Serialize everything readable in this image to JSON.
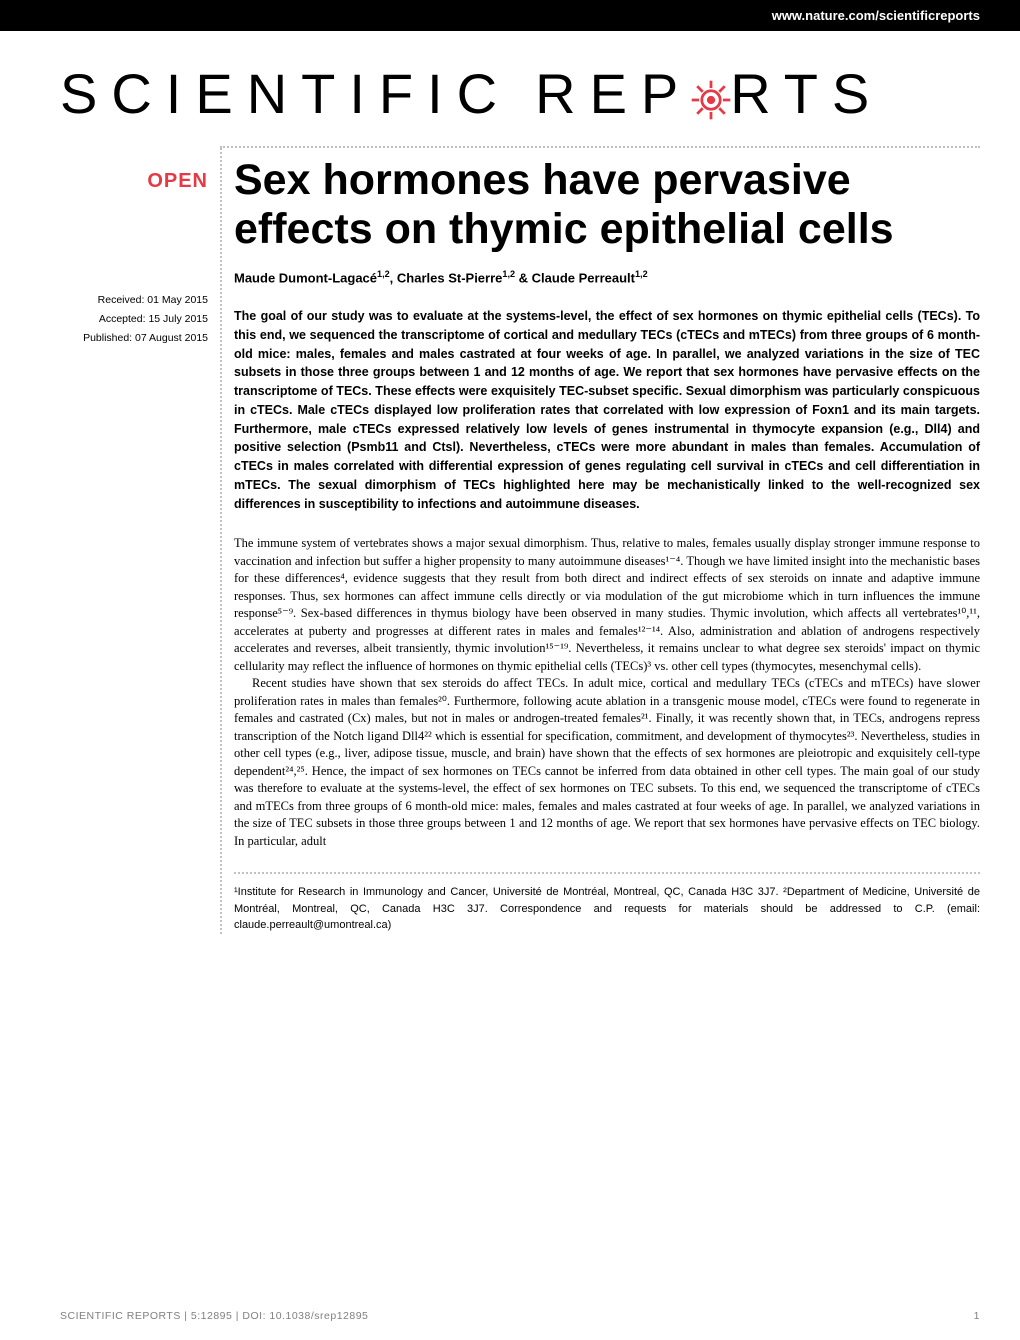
{
  "header": {
    "url": "www.nature.com/scientificreports"
  },
  "logo": {
    "left": "SCIENTIFIC",
    "right": "REP",
    "right2": "RTS",
    "gear_color": "#e63946"
  },
  "badge": {
    "open": "OPEN"
  },
  "dates": {
    "received": "Received: 01 May 2015",
    "accepted": "Accepted: 15 July 2015",
    "published": "Published: 07 August 2015"
  },
  "title": "Sex hormones have pervasive effects on thymic epithelial cells",
  "authors_html": "Maude Dumont-Lagacé<sup>1,2</sup>, Charles St-Pierre<sup>1,2</sup> & Claude Perreault<sup>1,2</sup>",
  "abstract": "The goal of our study was to evaluate at the systems-level, the effect of sex hormones on thymic epithelial cells (TECs). To this end, we sequenced the transcriptome of cortical and medullary TECs (cTECs and mTECs) from three groups of 6 month-old mice: males, females and males castrated at four weeks of age. In parallel, we analyzed variations in the size of TEC subsets in those three groups between 1 and 12 months of age. We report that sex hormones have pervasive effects on the transcriptome of TECs. These effects were exquisitely TEC-subset specific. Sexual dimorphism was particularly conspicuous in cTECs. Male cTECs displayed low proliferation rates that correlated with low expression of Foxn1 and its main targets. Furthermore, male cTECs expressed relatively low levels of genes instrumental in thymocyte expansion (e.g., Dll4) and positive selection (Psmb11 and Ctsl). Nevertheless, cTECs were more abundant in males than females. Accumulation of cTECs in males correlated with differential expression of genes regulating cell survival in cTECs and cell differentiation in mTECs. The sexual dimorphism of TECs highlighted here may be mechanistically linked to the well-recognized sex differences in susceptibility to infections and autoimmune diseases.",
  "body": {
    "p1": "The immune system of vertebrates shows a major sexual dimorphism. Thus, relative to males, females usually display stronger immune response to vaccination and infection but suffer a higher propensity to many autoimmune diseases¹⁻⁴. Though we have limited insight into the mechanistic bases for these differences⁴, evidence suggests that they result from both direct and indirect effects of sex steroids on innate and adaptive immune responses. Thus, sex hormones can affect immune cells directly or via modulation of the gut microbiome which in turn influences the immune response⁵⁻⁹. Sex-based differences in thymus biology have been observed in many studies. Thymic involution, which affects all vertebrates¹⁰,¹¹, accelerates at puberty and progresses at different rates in males and females¹²⁻¹⁴. Also, administration and ablation of androgens respectively accelerates and reverses, albeit transiently, thymic involution¹⁵⁻¹⁹. Nevertheless, it remains unclear to what degree sex steroids' impact on thymic cellularity may reflect the influence of hormones on thymic epithelial cells (TECs)³ vs. other cell types (thymocytes, mesenchymal cells).",
    "p2": "Recent studies have shown that sex steroids do affect TECs. In adult mice, cortical and medullary TECs (cTECs and mTECs) have slower proliferation rates in males than females²⁰. Furthermore, following acute ablation in a transgenic mouse model, cTECs were found to regenerate in females and castrated (Cx) males, but not in males or androgen-treated females²¹. Finally, it was recently shown that, in TECs, androgens repress transcription of the Notch ligand Dll4²² which is essential for specification, commitment, and development of thymocytes²³. Nevertheless, studies in other cell types (e.g., liver, adipose tissue, muscle, and brain) have shown that the effects of sex hormones are pleiotropic and exquisitely cell-type dependent²⁴,²⁵. Hence, the impact of sex hormones on TECs cannot be inferred from data obtained in other cell types. The main goal of our study was therefore to evaluate at the systems-level, the effect of sex hormones on TEC subsets. To this end, we sequenced the transcriptome of cTECs and mTECs from three groups of 6 month-old mice: males, females and males castrated at four weeks of age. In parallel, we analyzed variations in the size of TEC subsets in those three groups between 1 and 12 months of age. We report that sex hormones have pervasive effects on TEC biology. In particular, adult"
  },
  "affiliations": "¹Institute for Research in Immunology and Cancer, Université de Montréal, Montreal, QC, Canada H3C 3J7. ²Department of Medicine, Université de Montréal, Montreal, QC, Canada H3C 3J7. Correspondence and requests for materials should be addressed to C.P. (email: claude.perreault@umontreal.ca)",
  "footer": {
    "citation": "SCIENTIFIC REPORTS | 5:12895 | DOI: 10.1038/srep12895",
    "page": "1"
  },
  "colors": {
    "accent": "#e63946",
    "text": "#000000",
    "bg": "#ffffff",
    "dotted": "#c0c0c0",
    "footer": "#808080"
  }
}
